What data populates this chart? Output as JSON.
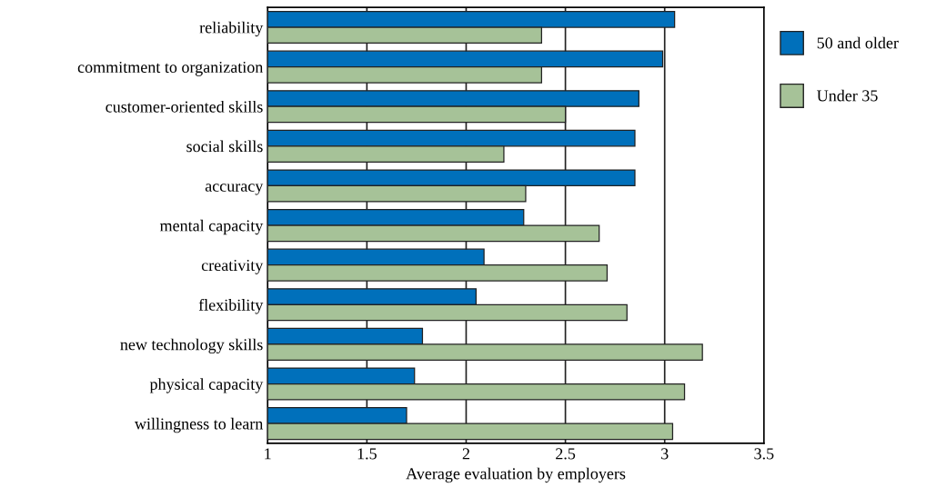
{
  "chart_data": {
    "type": "bar",
    "orientation": "horizontal",
    "xlabel": "Average evaluation by employers",
    "categories": [
      "reliability",
      "commitment to organization",
      "customer-oriented skills",
      "social skills",
      "accuracy",
      "mental capacity",
      "creativity",
      "flexibility",
      "new technology skills",
      "physical capacity",
      "willingness to learn"
    ],
    "series": [
      {
        "name": "50 and older",
        "color": "#0070bb",
        "values": [
          3.05,
          2.99,
          2.87,
          2.85,
          2.85,
          2.29,
          2.09,
          2.05,
          1.78,
          1.74,
          1.7
        ]
      },
      {
        "name": "Under 35",
        "color": "#a6c298",
        "values": [
          2.38,
          2.38,
          2.5,
          2.19,
          2.3,
          2.67,
          2.71,
          2.81,
          3.19,
          3.1,
          3.04
        ]
      }
    ],
    "xlim": [
      1,
      3.5
    ],
    "xticks": [
      1,
      1.5,
      2,
      2.5,
      3,
      3.5
    ],
    "grid": "x",
    "legend": "right"
  }
}
